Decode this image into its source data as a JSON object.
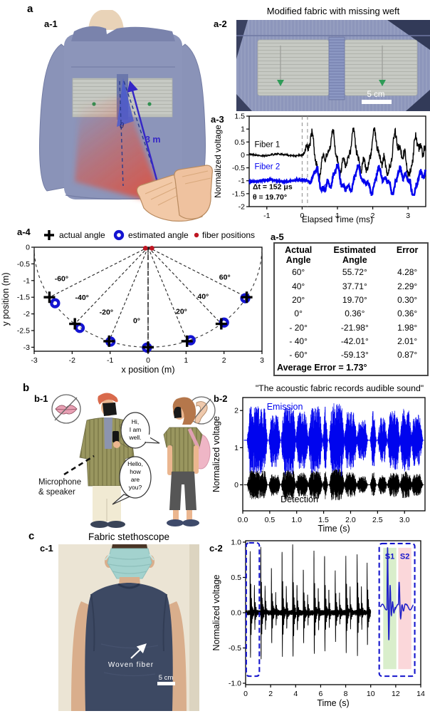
{
  "figure": {
    "a": {
      "label": "a"
    },
    "a1": {
      "label": "a-1",
      "distance": "3 m",
      "theta": "θ"
    },
    "a2": {
      "label": "a-2",
      "title": "Modified fabric with missing weft",
      "scalebar": "5 cm"
    },
    "a3": {
      "label": "a-3"
    },
    "a4": {
      "label": "a-4"
    },
    "a5": {
      "label": "a-5",
      "headers": [
        "Actual Angle",
        "Estimated Angle",
        "Error"
      ],
      "rows": [
        [
          "60°",
          "55.72°",
          "4.28°"
        ],
        [
          "40°",
          "37.71°",
          "2.29°"
        ],
        [
          "20°",
          "19.70°",
          "0.30°"
        ],
        [
          "0°",
          "0.36°",
          "0.36°"
        ],
        [
          "- 20°",
          "-21.98°",
          "1.98°"
        ],
        [
          "- 40°",
          "-42.01°",
          "2.01°"
        ],
        [
          "- 60°",
          "-59.13°",
          "0.87°"
        ]
      ],
      "footer": "Average Error = 1.73°"
    },
    "b": {
      "label": "b"
    },
    "b1": {
      "label": "b-1",
      "speech_right_lines": [
        "Hi,",
        "I am",
        "well."
      ],
      "speech_left_lines": [
        "Hello,",
        "how",
        "are",
        "you?"
      ],
      "annotation_lines": [
        "Microphone",
        "& speaker"
      ]
    },
    "b2": {
      "label": "b-2"
    },
    "c": {
      "label": "c"
    },
    "c1": {
      "label": "c-1",
      "title": "Fabric stethoscope",
      "annotation": "Woven fiber",
      "scalebar": "5 cm"
    },
    "c2": {
      "label": "c-2"
    }
  },
  "chart_data": [
    {
      "id": "a3",
      "panel": "a-3",
      "type": "line",
      "xlabel": "Elapsed Time (ms)",
      "ylabel": "Normalized voltage",
      "xlim": [
        -1.5,
        3.5
      ],
      "ylim": [
        -2,
        1.5
      ],
      "xticks": [
        -1,
        0,
        1,
        2,
        3
      ],
      "xtick_labels": [
        "-1",
        "0",
        "1",
        "2",
        "3"
      ],
      "yticks": [
        1.5,
        1,
        0.5,
        0,
        -0.5,
        -1,
        -1.5,
        -2
      ],
      "ytick_labels": [
        "1.5",
        "1",
        "0.5",
        "0",
        "-0.5",
        "-1",
        "-1.5",
        "-2"
      ],
      "dashed_lines_x": [
        0,
        0.152
      ],
      "series": [
        {
          "name": "Fiber 1",
          "color": "#000000",
          "offset": 0,
          "onset": 0,
          "amp": 1.0,
          "clip": [
            -1.02,
            1.06
          ],
          "width": 1.4
        },
        {
          "name": "Fiber 2",
          "color": "#0000EE",
          "offset": -1,
          "onset": 0.152,
          "amp": 0.62,
          "clip": [
            -0.55,
            0.74
          ],
          "width": 2.4
        }
      ],
      "annotations": [
        "Δt = 152 μs",
        "θ = 19.70°"
      ],
      "delta_t_us": 152,
      "theta_deg": 19.7
    },
    {
      "id": "a4",
      "panel": "a-4",
      "type": "scatter",
      "xlabel": "x position (m)",
      "ylabel": "y position (m)",
      "xlim": [
        -3,
        3
      ],
      "ylim": [
        -3.12,
        0
      ],
      "xticks": [
        -3,
        -2,
        -1,
        0,
        1,
        2,
        3
      ],
      "xtick_labels": [
        "-3",
        "-2",
        "-1",
        "0",
        "1",
        "2",
        "3"
      ],
      "yticks": [
        0,
        -0.5,
        -1,
        -1.5,
        -2,
        -2.5,
        -3
      ],
      "ytick_labels": [
        "0",
        "-0.5",
        "-1",
        "-1.5",
        "-2",
        "-2.5",
        "-3"
      ],
      "legend": [
        "actual angle",
        "estimated angle",
        "fiber positions"
      ],
      "radius_m": 3,
      "actual_angles_deg": [
        -60,
        -40,
        -20,
        0,
        20,
        40,
        60
      ],
      "estimated_angles_deg": [
        -59.13,
        -42.01,
        -21.98,
        0.36,
        19.7,
        37.71,
        55.72
      ],
      "actual_points": [
        [
          -2.598,
          -1.5
        ],
        [
          -1.928,
          -2.298
        ],
        [
          -1.026,
          -2.819
        ],
        [
          0,
          -3.0
        ],
        [
          1.026,
          -2.819
        ],
        [
          1.928,
          -2.298
        ],
        [
          2.598,
          -1.5
        ]
      ],
      "estimated_points": [
        [
          -2.45,
          -1.68
        ],
        [
          -1.8,
          -2.42
        ],
        [
          -0.99,
          -2.83
        ],
        [
          -0.03,
          -3.01
        ],
        [
          1.12,
          -2.79
        ],
        [
          2.0,
          -2.26
        ],
        [
          2.56,
          -1.53
        ]
      ],
      "fiber_points": [
        [
          -0.07,
          -0.03
        ],
        [
          0.1,
          -0.03
        ]
      ],
      "angle_labels": [
        {
          "t": "-60°",
          "x": -2.28,
          "y": -1.02
        },
        {
          "t": "-40°",
          "x": -1.74,
          "y": -1.58
        },
        {
          "t": "-20°",
          "x": -1.1,
          "y": -2.02
        },
        {
          "t": "0°",
          "x": -0.3,
          "y": -2.28
        },
        {
          "t": "20°",
          "x": 0.88,
          "y": -2.0
        },
        {
          "t": "40°",
          "x": 1.45,
          "y": -1.55
        },
        {
          "t": "60°",
          "x": 2.02,
          "y": -0.97
        }
      ],
      "colors": {
        "actual": "#000000",
        "estimated": "#1414D2",
        "fiber": "#BE1622"
      }
    },
    {
      "id": "b2",
      "panel": "b-2",
      "type": "area",
      "title": "\"The acoustic fabric records audible sound\"",
      "xlabel": "Time (s)",
      "ylabel": "Normalized voltage",
      "xlim": [
        0,
        3.38
      ],
      "ylim": [
        -0.7,
        2.35
      ],
      "xticks": [
        0,
        0.5,
        1,
        1.5,
        2,
        2.5,
        3
      ],
      "xtick_labels": [
        "0.0",
        "0.5",
        "1.0",
        "1.5",
        "2.0",
        "2.5",
        "3.0"
      ],
      "yticks": [
        0,
        1,
        2
      ],
      "ytick_labels": [
        "0",
        "1",
        "2"
      ],
      "series": [
        {
          "name": "Emission",
          "color": "#0004EE",
          "center": 1.2,
          "scale": 1.0
        },
        {
          "name": "Detection",
          "color": "#000000",
          "center": 0,
          "scale": 0.42
        }
      ],
      "bursts": [
        [
          0.1,
          0.44,
          0.92
        ],
        [
          0.5,
          0.68,
          0.72
        ],
        [
          0.73,
          0.97,
          0.95
        ],
        [
          1.0,
          1.2,
          0.78
        ],
        [
          1.23,
          1.46,
          0.92
        ],
        [
          1.5,
          1.56,
          1.0
        ],
        [
          1.62,
          1.87,
          1.0
        ],
        [
          1.9,
          2.1,
          0.8
        ],
        [
          2.13,
          2.3,
          0.55
        ],
        [
          2.38,
          2.46,
          0.85
        ],
        [
          2.52,
          2.66,
          0.62
        ],
        [
          2.7,
          2.9,
          0.8
        ],
        [
          2.93,
          3.12,
          0.85
        ],
        [
          3.14,
          3.32,
          0.7
        ]
      ]
    },
    {
      "id": "c2",
      "panel": "c-2",
      "type": "line",
      "xlabel": "Time (s)",
      "ylabel": "Normalized voltage",
      "xlim": [
        0,
        14
      ],
      "ylim": [
        -1.02,
        1.02
      ],
      "xticks": [
        0,
        2,
        4,
        6,
        8,
        10,
        12,
        14
      ],
      "xtick_labels": [
        "0",
        "2",
        "4",
        "6",
        "8",
        "10",
        "12",
        "14"
      ],
      "yticks": [
        1,
        0.5,
        0,
        -0.5,
        -1
      ],
      "ytick_labels": [
        "1.0",
        "0.5",
        "0.0",
        "-0.5",
        "-1.0"
      ],
      "beat_times": [
        0.35,
        1.2,
        2.05,
        2.9,
        3.75,
        4.6,
        5.45,
        6.3,
        7.15,
        8.0,
        8.9,
        9.7
      ],
      "beat_amps": [
        0.92,
        0.95,
        0.65,
        0.9,
        1.0,
        0.65,
        0.9,
        0.85,
        0.62,
        0.85,
        0.9,
        0.72
      ],
      "s2_delay": 0.34,
      "s2_ratio": 0.45,
      "highlight_box": {
        "x": [
          0.05,
          1.1
        ],
        "y": [
          -0.9,
          0.99
        ]
      },
      "inset": {
        "x": [
          10.68,
          13.52
        ],
        "y": [
          -0.9,
          0.98
        ],
        "bands": [
          {
            "label": "S1",
            "x": [
              11.0,
              12.05
            ],
            "color": "#D9EECB"
          },
          {
            "label": "S2",
            "x": [
              12.2,
              13.25
            ],
            "color": "#FBD7DA"
          }
        ],
        "trace_color": "#2020C8",
        "box_color": "#1414CC",
        "label_color": "#1414CC"
      }
    }
  ]
}
